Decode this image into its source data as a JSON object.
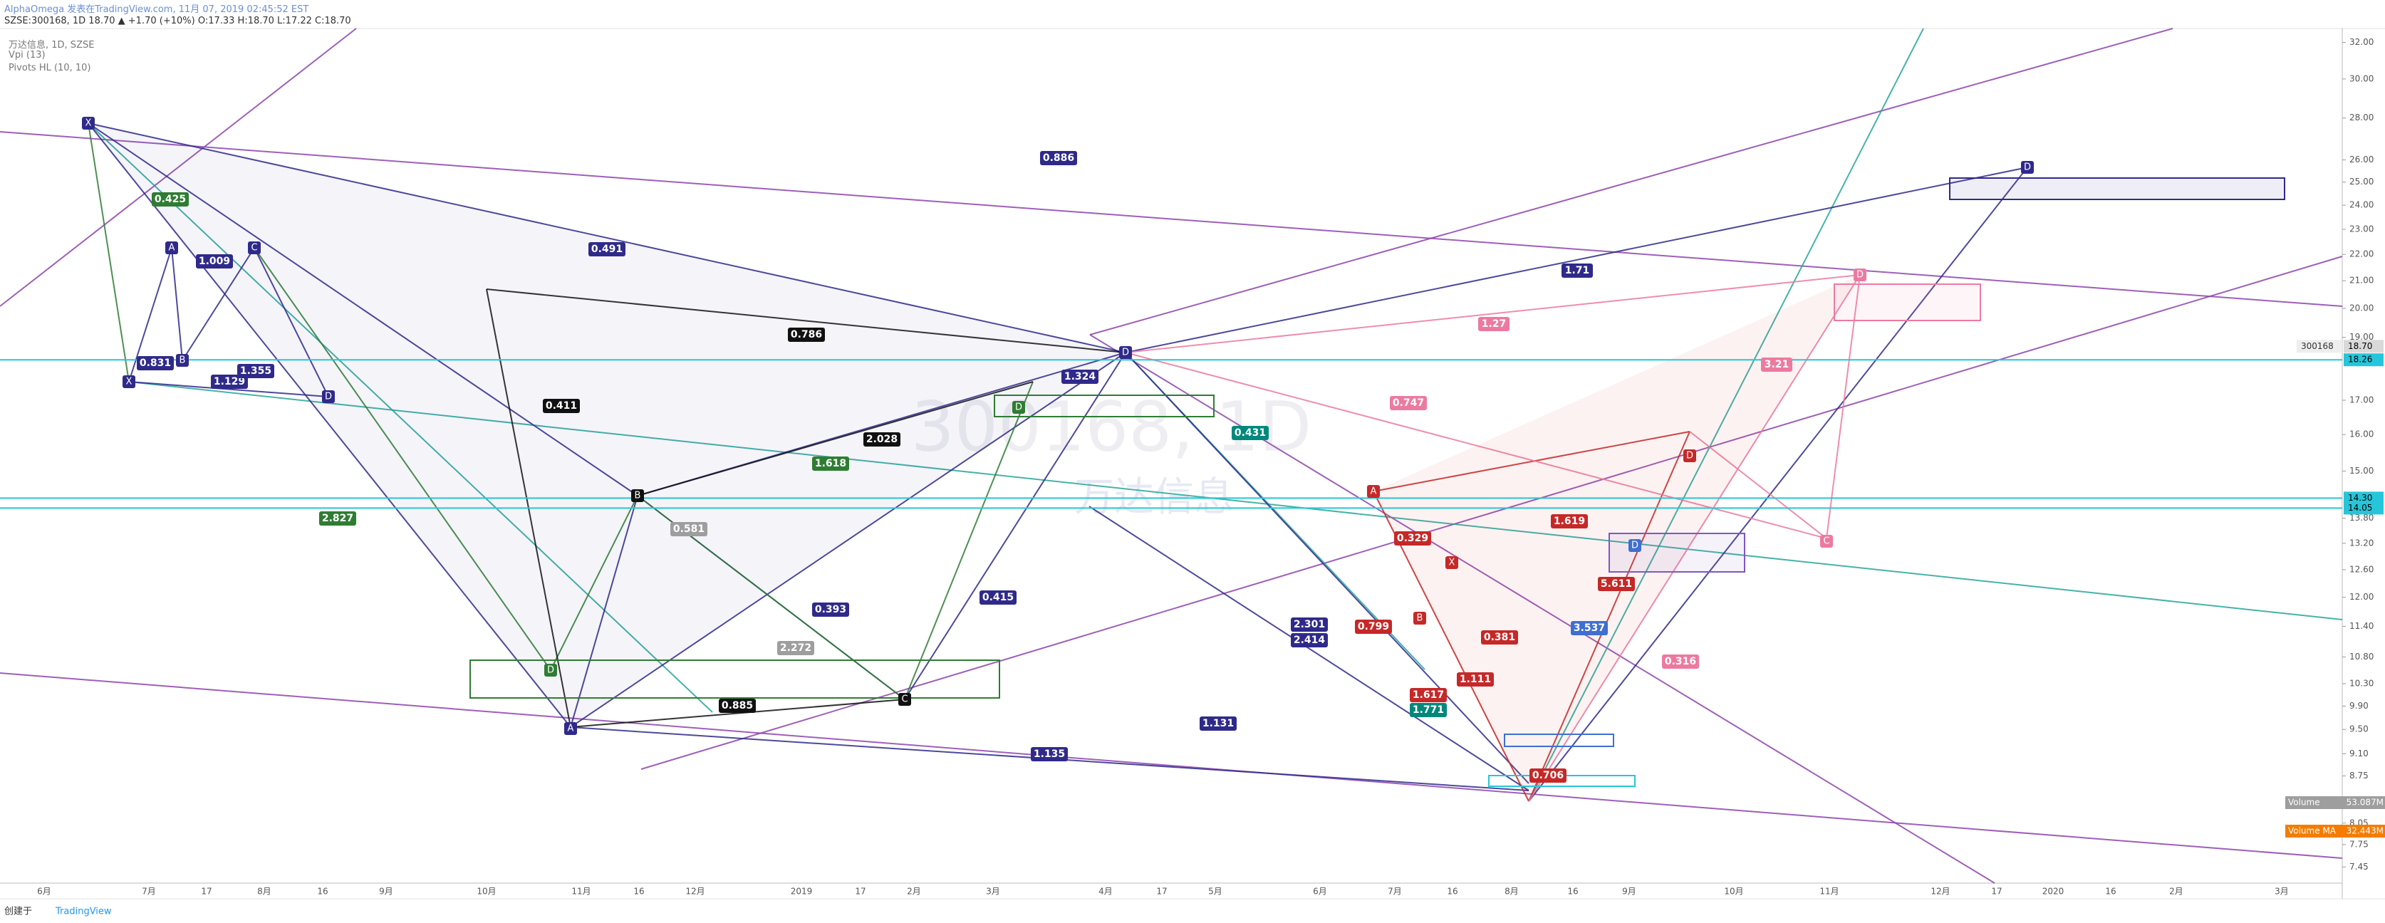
{
  "header": {
    "line1": "AlphaOmega 发表在TradingView.com, 11月 07, 2019 02:45:52 EST",
    "line2": "SZSE:300168, 1D 18.70 ▲ +1.70 (+10%) O:17.33 H:18.70 L:17.22 C:18.70"
  },
  "legend": {
    "title": "万达信息, 1D, SZSE",
    "indicators": [
      "Vpi (13)",
      "Pivots HL (10, 10)"
    ]
  },
  "watermark": {
    "symbol": "300168, 1D",
    "name": "万达信息"
  },
  "footer": {
    "created": "创建于",
    "brand": "TradingView"
  },
  "chart_data": {
    "type": "harmonic",
    "log_scale": true,
    "ylim": [
      7.24,
      32.8
    ],
    "yticks": [
      {
        "value": 32,
        "label": "32.00"
      },
      {
        "value": 30,
        "label": "30.00"
      },
      {
        "value": 28,
        "label": "28.00"
      },
      {
        "value": 26,
        "label": "26.00"
      },
      {
        "value": 25,
        "label": "25.00"
      },
      {
        "value": 24,
        "label": "24.00"
      },
      {
        "value": 23,
        "label": "23.00"
      },
      {
        "value": 22,
        "label": "22.00"
      },
      {
        "value": 21,
        "label": "21.00"
      },
      {
        "value": 20,
        "label": "20.00"
      },
      {
        "value": 19,
        "label": "19.00"
      },
      {
        "value": 17,
        "label": "17.00"
      },
      {
        "value": 16,
        "label": "16.00"
      },
      {
        "value": 15,
        "label": "15.00"
      },
      {
        "value": 13.8,
        "label": "13.80"
      },
      {
        "value": 13.2,
        "label": "13.20"
      },
      {
        "value": 12.6,
        "label": "12.60"
      },
      {
        "value": 12,
        "label": "12.00"
      },
      {
        "value": 11.4,
        "label": "11.40"
      },
      {
        "value": 10.8,
        "label": "10.80"
      },
      {
        "value": 10.3,
        "label": "10.30"
      },
      {
        "value": 9.9,
        "label": "9.90"
      },
      {
        "value": 9.5,
        "label": "9.50"
      },
      {
        "value": 9.1,
        "label": "9.10"
      },
      {
        "value": 8.75,
        "label": "8.75"
      },
      {
        "value": 8.05,
        "label": "8.05"
      },
      {
        "value": 7.75,
        "label": "7.75"
      },
      {
        "value": 7.45,
        "label": "7.45"
      }
    ],
    "price_labels": [
      {
        "value": 18.7,
        "label": "18.70",
        "name": "300168",
        "color": "#d9d9d9"
      },
      {
        "value": 18.26,
        "label": "18.26",
        "color": "#26c6da"
      },
      {
        "value": 14.3,
        "label": "14.30",
        "color": "#26c6da"
      },
      {
        "value": 14.05,
        "label": "14.05",
        "color": "#26c6da"
      }
    ],
    "volume_labels": [
      {
        "name": "Volume",
        "label": "53.087M",
        "color": "#9e9e9e"
      },
      {
        "name": "Volume MA",
        "label": "32.443M",
        "color": "#f57c00"
      }
    ],
    "x_labels": [
      "6月",
      "7月",
      "17",
      "8月",
      "16",
      "9月",
      "10月",
      "11月",
      "16",
      "12月",
      "2019",
      "17",
      "2月",
      "3月",
      "4月",
      "17",
      "5月",
      "6月",
      "7月",
      "16",
      "8月",
      "16",
      "9月",
      "10月",
      "11月",
      "12月",
      "17",
      "2020",
      "16",
      "2月",
      "3月"
    ],
    "pattern_labels": [
      {
        "text": "0.425",
        "color": "#2e7d32"
      },
      {
        "text": "1.009",
        "color": "#2f2a8a"
      },
      {
        "text": "0.831",
        "color": "#2f2a8a"
      },
      {
        "text": "1.129",
        "color": "#2f2a8a"
      },
      {
        "text": "1.355",
        "color": "#2f2a8a"
      },
      {
        "text": "2.827",
        "color": "#2e7d32"
      },
      {
        "text": "0.491",
        "color": "#2f2a8a"
      },
      {
        "text": "0.786",
        "color": "#111111"
      },
      {
        "text": "0.411",
        "color": "#111111"
      },
      {
        "text": "2.028",
        "color": "#111111"
      },
      {
        "text": "1.618",
        "color": "#2e7d32"
      },
      {
        "text": "0.581",
        "color": "#9e9e9e"
      },
      {
        "text": "0.393",
        "color": "#2f2a8a"
      },
      {
        "text": "0.885",
        "color": "#111111"
      },
      {
        "text": "2.272",
        "color": "#9e9e9e"
      },
      {
        "text": "1.324",
        "color": "#2f2a8a"
      },
      {
        "text": "0.431",
        "color": "#00897b"
      },
      {
        "text": "0.415",
        "color": "#2f2a8a"
      },
      {
        "text": "1.131",
        "color": "#2f2a8a"
      },
      {
        "text": "1.135",
        "color": "#2f2a8a"
      },
      {
        "text": "0.886",
        "color": "#2f2a8a"
      },
      {
        "text": "1.71",
        "color": "#2f2a8a"
      },
      {
        "text": "1.27",
        "color": "#ec7aa0"
      },
      {
        "text": "0.747",
        "color": "#ec7aa0"
      },
      {
        "text": "0.329",
        "color": "#c62828"
      },
      {
        "text": "0.799",
        "color": "#c62828"
      },
      {
        "text": "2.301",
        "color": "#2f2a8a"
      },
      {
        "text": "2.414",
        "color": "#2f2a8a"
      },
      {
        "text": "1.619",
        "color": "#c62828"
      },
      {
        "text": "0.381",
        "color": "#c62828"
      },
      {
        "text": "1.111",
        "color": "#c62828"
      },
      {
        "text": "1.617",
        "color": "#c62828"
      },
      {
        "text": "1.771",
        "color": "#00897b"
      },
      {
        "text": "0.706",
        "color": "#c62828"
      },
      {
        "text": "5.611",
        "color": "#c62828"
      },
      {
        "text": "3.537",
        "color": "#3f6fd1"
      },
      {
        "text": "0.316",
        "color": "#ec7aa0"
      },
      {
        "text": "3.21",
        "color": "#ec7aa0"
      }
    ],
    "point_labels": [
      {
        "text": "X",
        "color": "#2f2a8a"
      },
      {
        "text": "A",
        "color": "#2f2a8a"
      },
      {
        "text": "B",
        "color": "#111111"
      },
      {
        "text": "C",
        "color": "#111111"
      },
      {
        "text": "D",
        "color": "#2f2a8a"
      },
      {
        "text": "D",
        "color": "#2f2a8a"
      },
      {
        "text": "X",
        "color": "#2f2a8a"
      },
      {
        "text": "A",
        "color": "#2f2a8a"
      },
      {
        "text": "B",
        "color": "#2f2a8a"
      },
      {
        "text": "C",
        "color": "#2f2a8a"
      },
      {
        "text": "D",
        "color": "#2f2a8a"
      },
      {
        "text": "D",
        "color": "#2e7d32"
      },
      {
        "text": "D",
        "color": "#2e7d32"
      },
      {
        "text": "A",
        "color": "#c62828"
      },
      {
        "text": "D",
        "color": "#c62828"
      },
      {
        "text": "D",
        "color": "#ec7aa0"
      },
      {
        "text": "C",
        "color": "#ec7aa0"
      },
      {
        "text": "D",
        "color": "#3f6fd1"
      },
      {
        "text": "X",
        "color": "#c62828"
      },
      {
        "text": "B",
        "color": "#c62828"
      }
    ]
  }
}
